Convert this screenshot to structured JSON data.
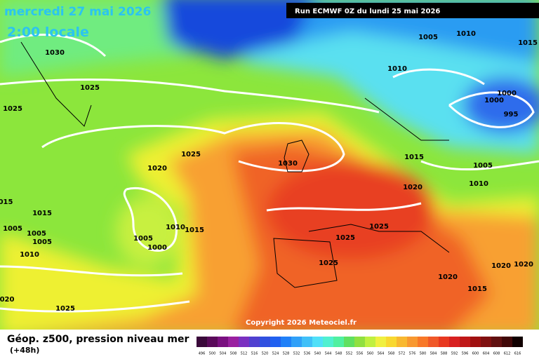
{
  "header": {
    "title": "mercredi 27 mai 2026",
    "time": "2:00 locale",
    "run": "Run ECMWF 0Z du lundi 25 mai 2026"
  },
  "isobar_labels": [
    "1030",
    "1025",
    "1025",
    "1025",
    "1020",
    "1030",
    "015",
    "1015",
    "1005",
    "1005",
    "1005",
    "1010",
    "1010",
    "1015",
    "1005",
    "1000",
    "1025",
    "1025",
    "1025",
    "020",
    "1025",
    "1005",
    "1010",
    "1015",
    "1010",
    "1000",
    "1000",
    "995",
    "1015",
    "1005",
    "1020",
    "1010",
    "1020",
    "1020",
    "1020",
    "1015"
  ],
  "copyright": "Copyright 2026 Meteociel.fr",
  "footer": {
    "title": "Géop. z500, pression niveau mer",
    "lead": "(+48h)"
  },
  "colorbar": {
    "labels": [
      "496",
      "500",
      "504",
      "508",
      "512",
      "516",
      "520",
      "524",
      "528",
      "532",
      "536",
      "540",
      "544",
      "548",
      "552",
      "556",
      "560",
      "564",
      "568",
      "572",
      "576",
      "580",
      "584",
      "588",
      "592",
      "596",
      "600",
      "604",
      "608",
      "612",
      "616"
    ],
    "colors": [
      "#3a0a3a",
      "#5a0a5a",
      "#7a1080",
      "#9a20a0",
      "#7a30c0",
      "#5040d0",
      "#3050e0",
      "#2060f0",
      "#2080f8",
      "#30a0f8",
      "#40c0f8",
      "#50e0f8",
      "#50f0d0",
      "#50f0a0",
      "#60e060",
      "#90e040",
      "#c0f040",
      "#f0f040",
      "#f8d830",
      "#f8b830",
      "#f89830",
      "#f87828",
      "#f05828",
      "#e83820",
      "#d82020",
      "#c01818",
      "#a01010",
      "#801010",
      "#601010",
      "#400808",
      "#100000"
    ]
  }
}
